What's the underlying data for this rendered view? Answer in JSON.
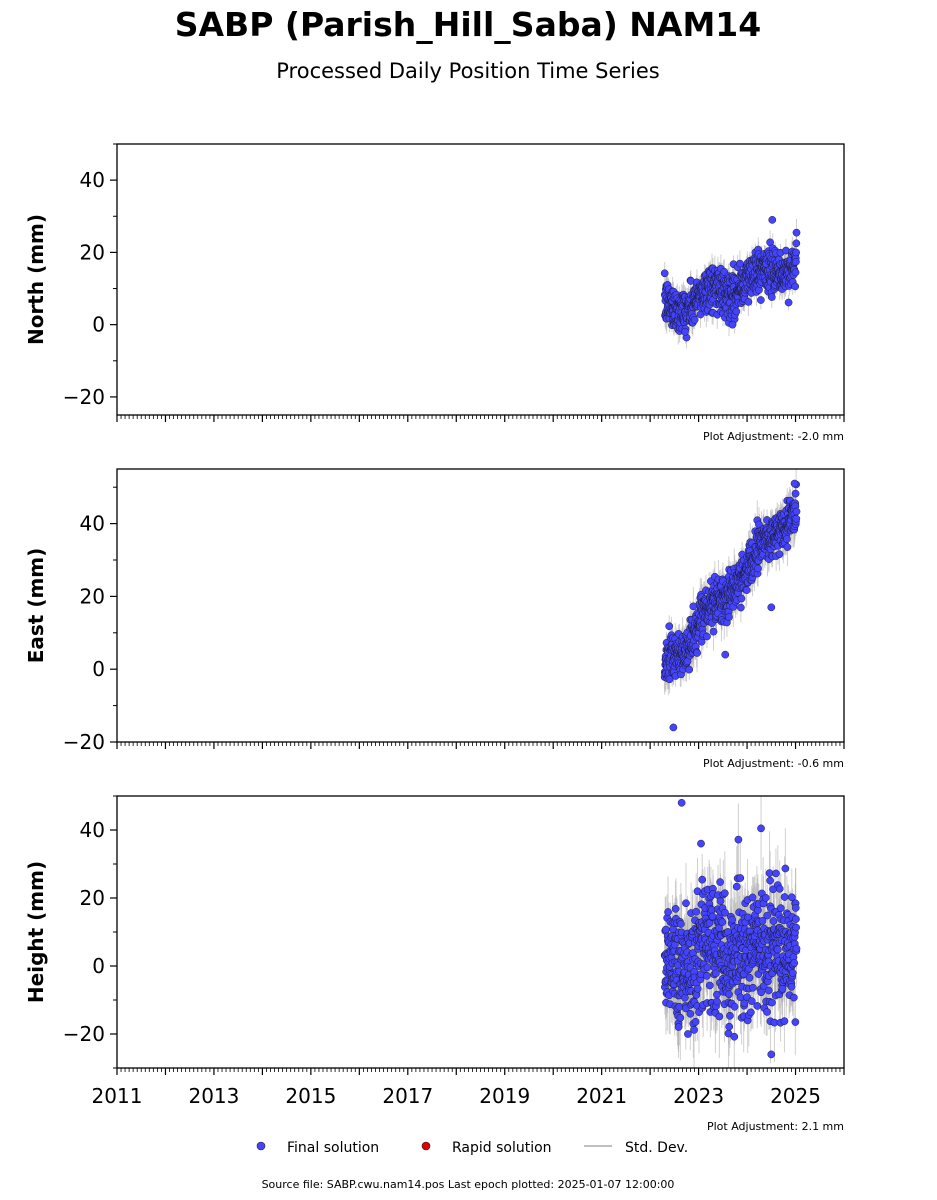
{
  "header": {
    "title": "SABP (Parish_Hill_Saba) NAM14",
    "subtitle": "Processed Daily Position Time Series"
  },
  "chart_data": {
    "type": "scatter",
    "x_range": [
      2011,
      2026
    ],
    "x_tick_labels": [
      "2011",
      "2013",
      "2015",
      "2017",
      "2019",
      "2021",
      "2023",
      "2025"
    ],
    "x_tick_values": [
      2011,
      2013,
      2015,
      2017,
      2019,
      2021,
      2023,
      2025
    ],
    "series_color": "#4444ff",
    "rapid_color": "#dd0000",
    "std_color": "#aaaaaa",
    "data_start": 2022.3,
    "data_end": 2025.02,
    "panels": [
      {
        "ylabel": "North (mm)",
        "ylim": [
          -25,
          50
        ],
        "y_ticks": [
          -20,
          0,
          20,
          40
        ],
        "y_tick_labels": [
          "−20",
          "0",
          "20",
          "40"
        ],
        "adjustment": "Plot Adjustment: -2.0 mm",
        "trend_start": 4,
        "trend_end": 17,
        "noise": 3,
        "err": 3,
        "outliers": [
          [
            2024.52,
            29
          ],
          [
            2022.72,
            -2
          ],
          [
            2023.7,
            0
          ]
        ]
      },
      {
        "ylabel": "East (mm)",
        "ylim": [
          -20,
          55
        ],
        "y_ticks": [
          -20,
          0,
          20,
          40
        ],
        "y_tick_labels": [
          "−20",
          "0",
          "20",
          "40"
        ],
        "adjustment": "Plot Adjustment: -0.6 mm",
        "trend_start": 0,
        "trend_end": 45,
        "noise": 3,
        "err": 4,
        "outliers": [
          [
            2022.48,
            -16
          ],
          [
            2024.98,
            51
          ],
          [
            2024.5,
            17
          ],
          [
            2023.55,
            4
          ]
        ]
      },
      {
        "ylabel": "Height (mm)",
        "ylim": [
          -30,
          50
        ],
        "y_ticks": [
          -20,
          0,
          20,
          40
        ],
        "y_tick_labels": [
          "−20",
          "0",
          "20",
          "40"
        ],
        "adjustment": "Plot Adjustment: 2.1 mm",
        "trend_start": 2,
        "trend_end": 5,
        "noise": 9,
        "err": 9,
        "outliers": [
          [
            2022.65,
            48
          ],
          [
            2022.78,
            -20
          ],
          [
            2023.05,
            36
          ],
          [
            2024.5,
            -26
          ]
        ]
      }
    ],
    "legend": {
      "final": "Final solution",
      "rapid": "Rapid solution",
      "std": "Std. Dev."
    }
  },
  "footer": {
    "source": "Source file: SABP.cwu.nam14.pos  Last epoch plotted: 2025-01-07 12:00:00"
  }
}
